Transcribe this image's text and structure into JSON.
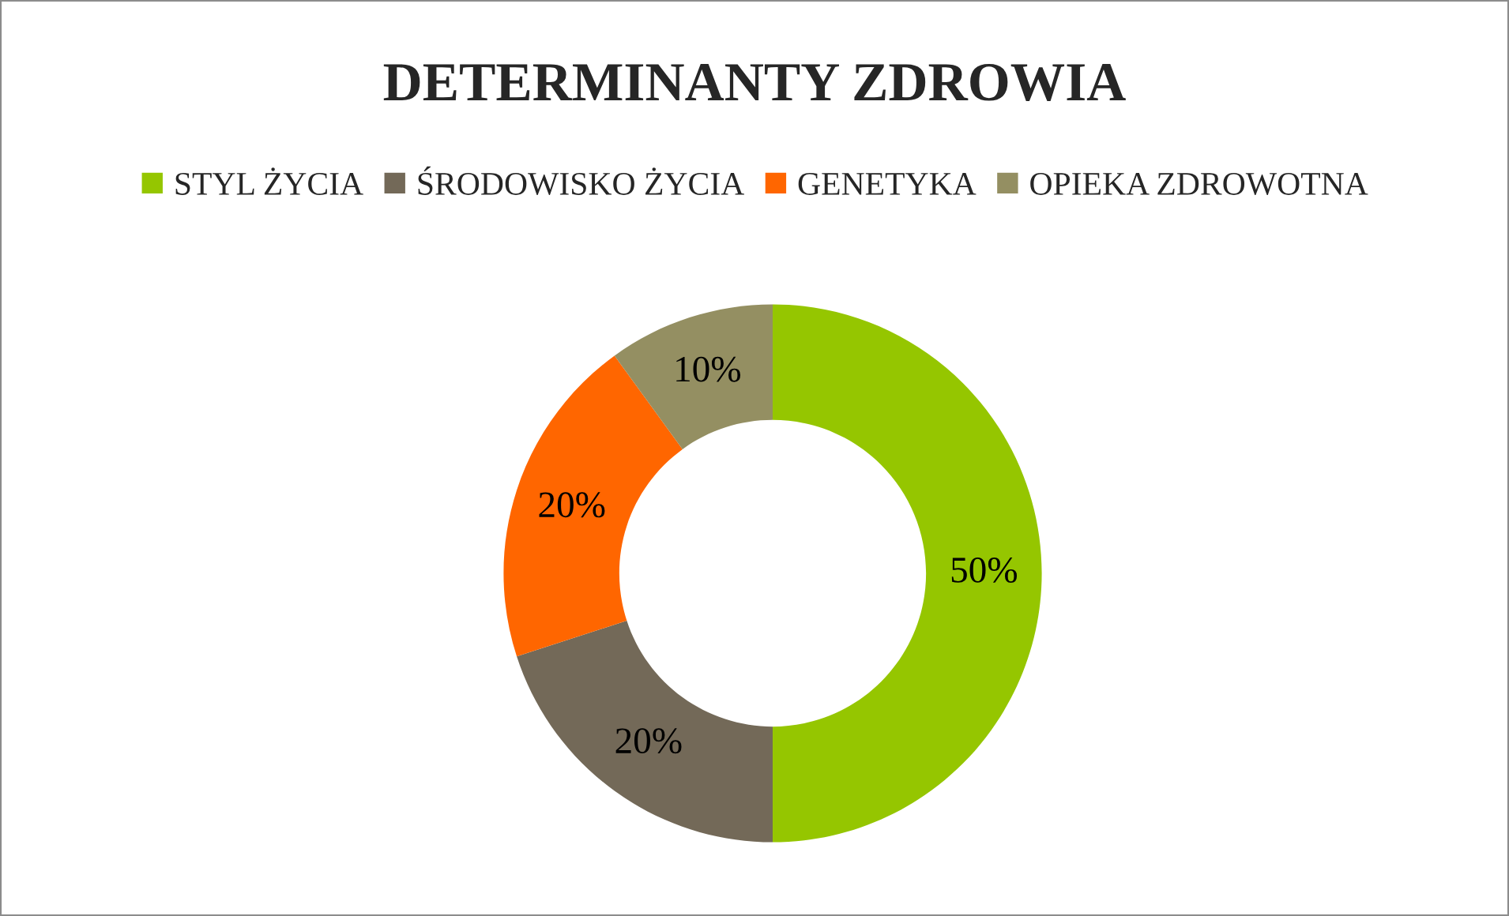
{
  "chart_data": {
    "type": "donut",
    "title": "DETERMINANTY ZDROWIA",
    "categories": [
      "STYL ŻYCIA",
      "ŚRODOWISKO ŻYCIA",
      "GENETYKA",
      "OPIEKA ZDROWOTNA"
    ],
    "values": [
      50,
      20,
      20,
      10
    ],
    "value_labels": [
      "50%",
      "20%",
      "20%",
      "10%"
    ],
    "colors": [
      "#95c600",
      "#736958",
      "#ff6600",
      "#948f62"
    ],
    "legend": "top"
  }
}
